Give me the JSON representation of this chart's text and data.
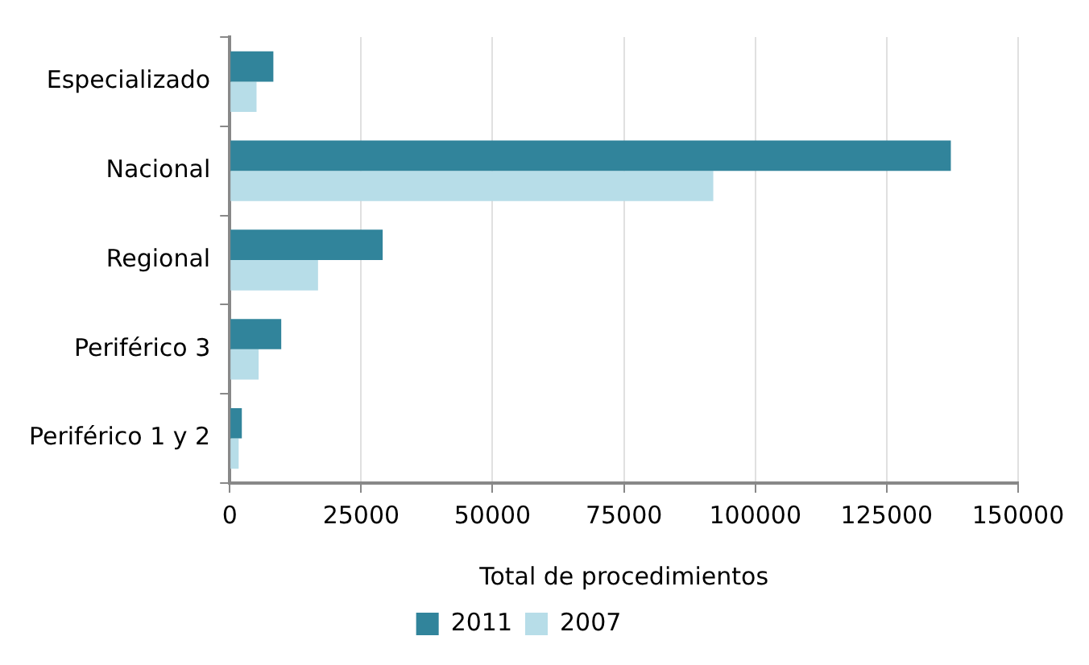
{
  "chart_data": {
    "type": "bar",
    "orientation": "horizontal",
    "xlabel": "Total de procedimientos",
    "categories": [
      "Especializado",
      "Nacional",
      "Regional",
      "Periférico 3",
      "Periférico 1 y 2"
    ],
    "series": [
      {
        "name": "2011",
        "color": "#31849b",
        "values": [
          8300,
          137200,
          29100,
          9800,
          2300
        ]
      },
      {
        "name": "2007",
        "color": "#b7dde8",
        "values": [
          5100,
          92000,
          16800,
          5500,
          1700
        ]
      }
    ],
    "xlim": [
      0,
      150000
    ],
    "xticks": [
      0,
      25000,
      50000,
      75000,
      100000,
      125000,
      150000
    ],
    "grid": "x",
    "legend": "bottom"
  }
}
